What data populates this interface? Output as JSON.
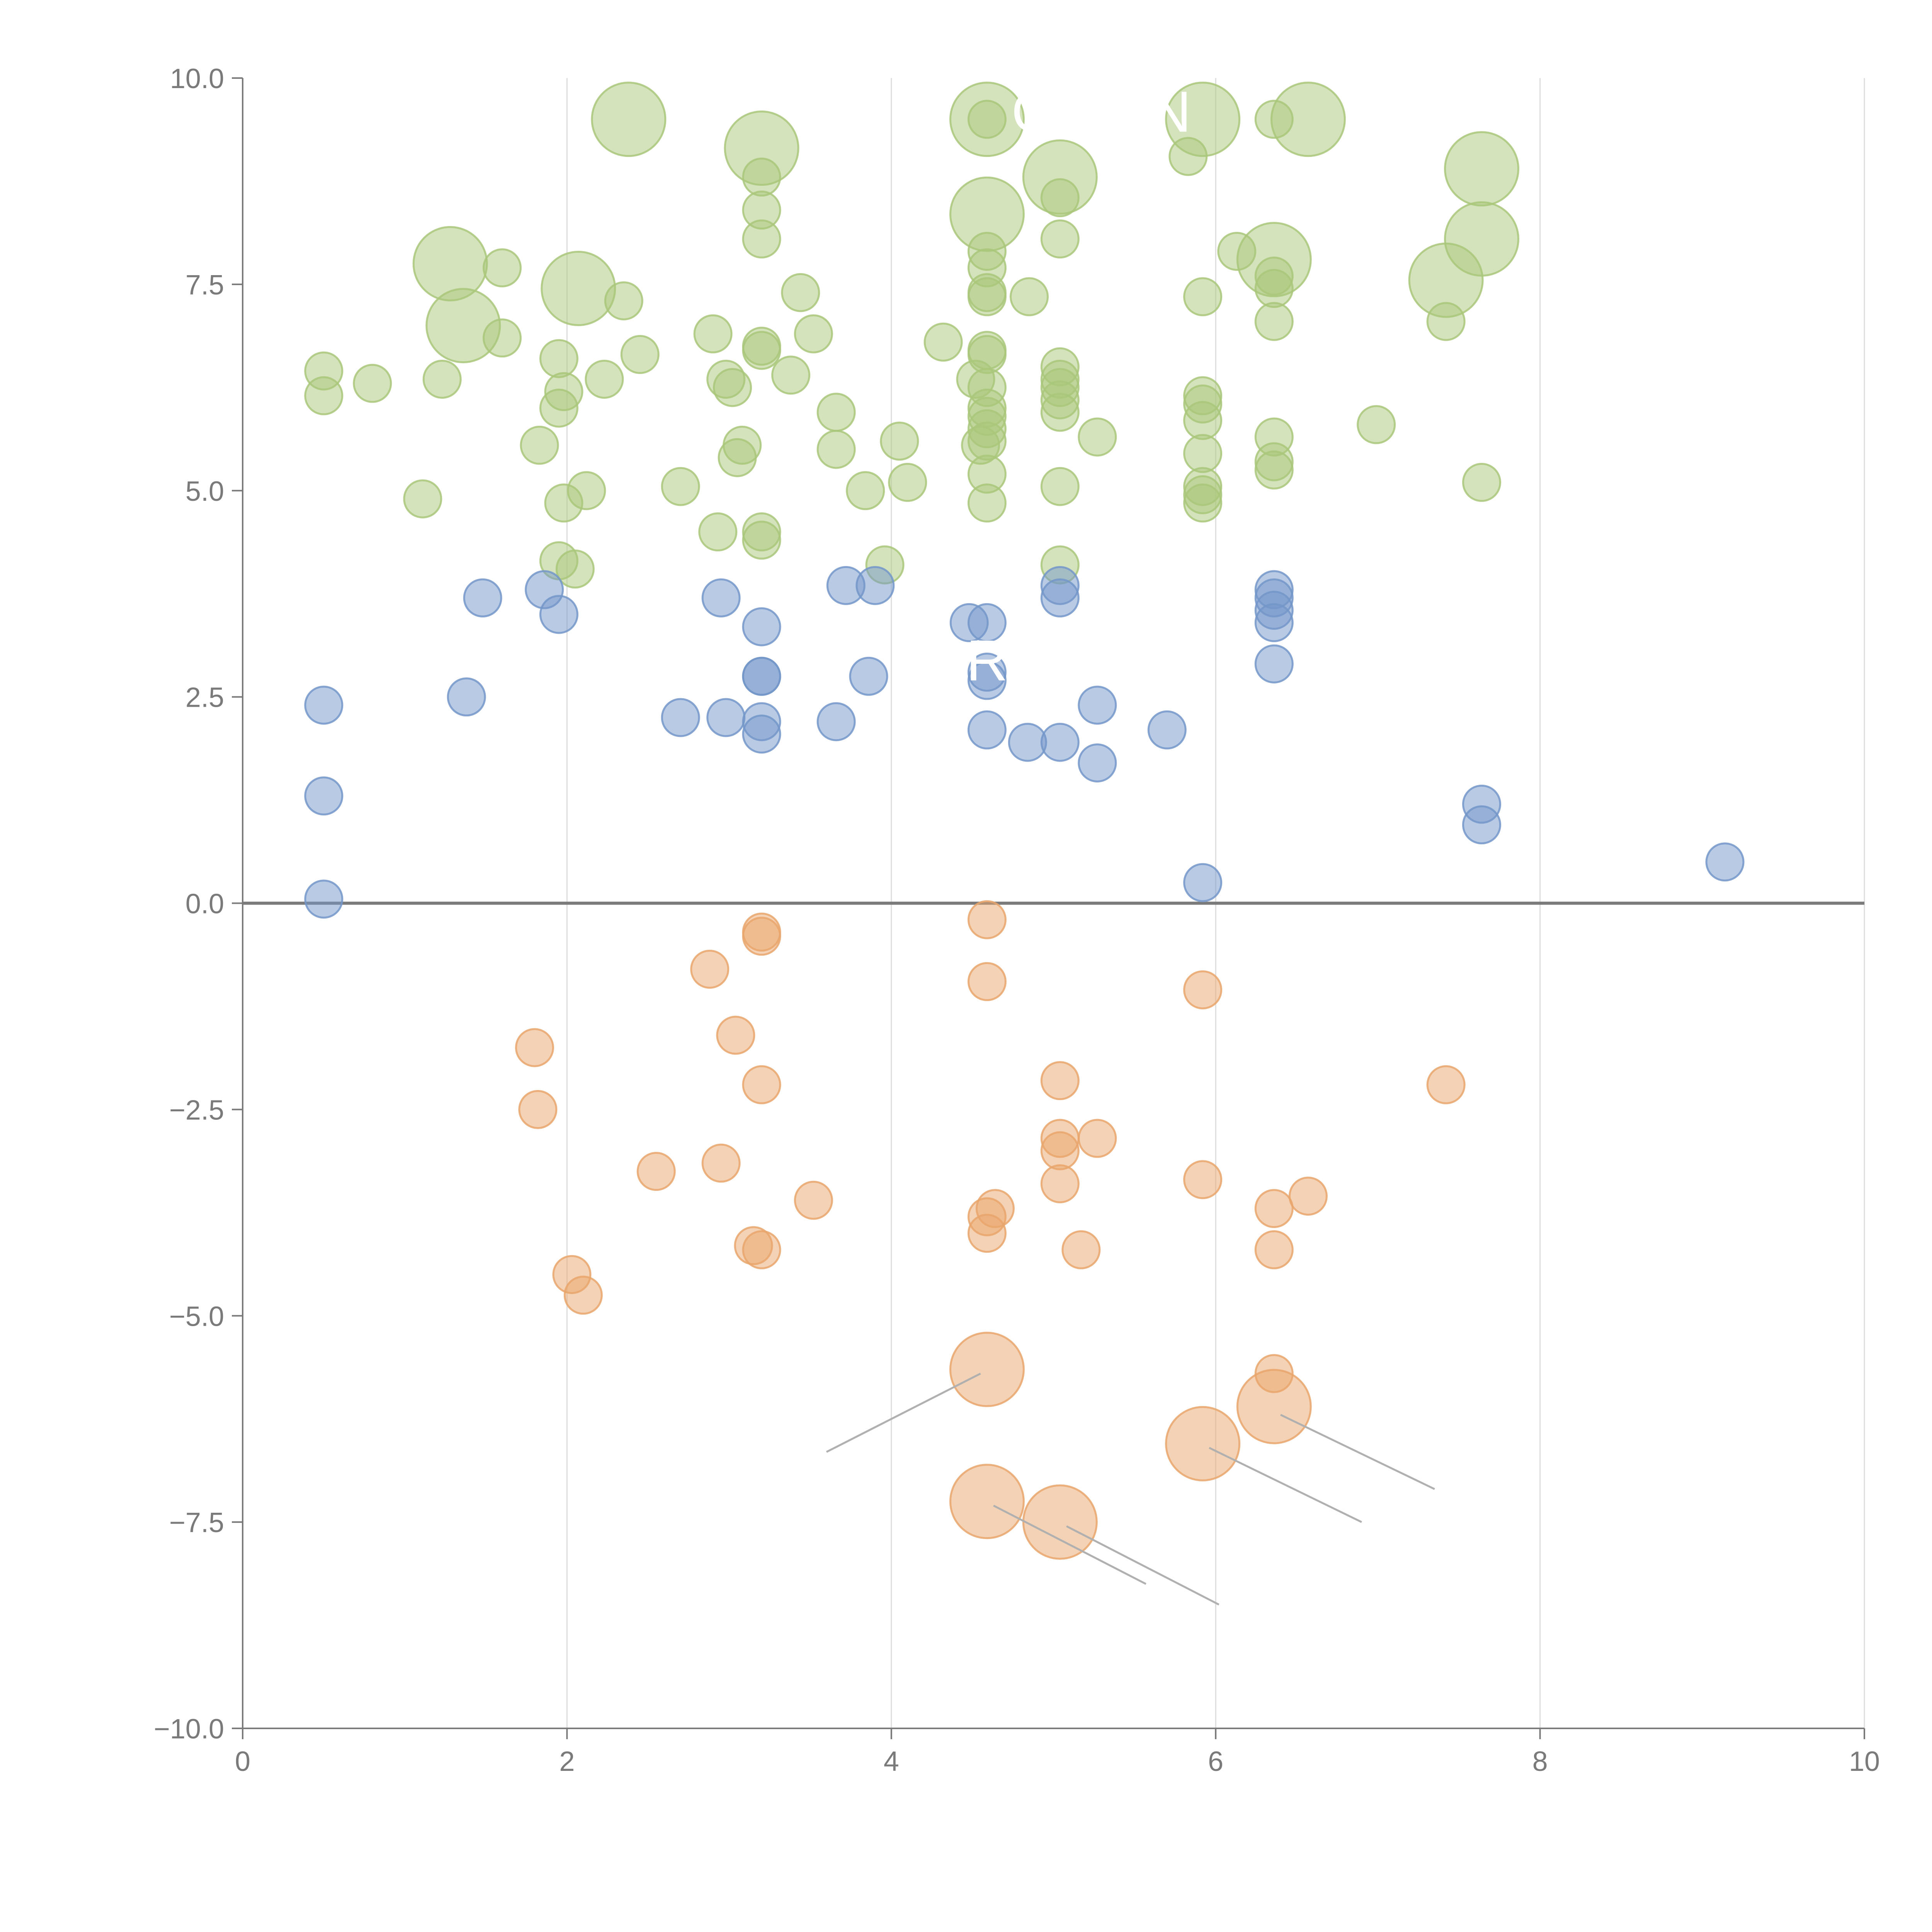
{
  "chart_data": {
    "type": "scatter",
    "title": "",
    "xlabel": "",
    "ylabel": "",
    "xlim": [
      0,
      10
    ],
    "ylim": [
      -10,
      10
    ],
    "grid": "vertical",
    "baseline_y": 0,
    "xticks": [
      0,
      2,
      4,
      6,
      8,
      10
    ],
    "xtick_labels": [
      "0",
      "2",
      "4",
      "6",
      "8",
      "10"
    ],
    "yticks": [
      -10,
      -7.5,
      -5,
      -2.5,
      0,
      2.5,
      5,
      7.5,
      10
    ],
    "ytick_labels": [
      "−10.0",
      "−7.5",
      "−5.0",
      "−2.5",
      "0.0",
      "2.5",
      "5.0",
      "7.5",
      "10.0"
    ],
    "colors": {
      "green": "#a9c77a",
      "blue": "#7396c9",
      "orange": "#e9a66c",
      "axis": "#7a7a7a",
      "grid": "#dcdcdc",
      "leader": "#b0b0b0"
    },
    "series": [
      {
        "name": "green",
        "color": "#a9c77a",
        "points": [
          [
            2.38,
            9.5,
            2
          ],
          [
            3.2,
            9.15,
            2
          ],
          [
            4.59,
            9.5,
            2
          ],
          [
            5.92,
            9.5,
            2
          ],
          [
            6.57,
            9.5,
            2
          ],
          [
            5.04,
            8.8,
            2
          ],
          [
            7.64,
            8.9,
            2
          ],
          [
            4.59,
            8.35,
            2
          ],
          [
            1.28,
            7.75,
            2
          ],
          [
            2.07,
            7.45,
            2
          ],
          [
            1.36,
            7.0,
            2
          ],
          [
            6.36,
            7.8,
            2
          ],
          [
            7.42,
            7.55,
            2
          ],
          [
            7.64,
            8.05,
            2
          ],
          [
            4.59,
            9.5,
            1
          ],
          [
            6.36,
            9.5,
            1
          ],
          [
            5.83,
            9.05,
            1
          ],
          [
            3.2,
            8.8,
            1
          ],
          [
            3.2,
            8.4,
            1
          ],
          [
            3.2,
            8.05,
            1
          ],
          [
            5.04,
            8.55,
            1
          ],
          [
            5.04,
            8.05,
            1
          ],
          [
            1.6,
            7.7,
            1
          ],
          [
            2.35,
            7.3,
            1
          ],
          [
            3.44,
            7.4,
            1
          ],
          [
            4.59,
            7.9,
            1
          ],
          [
            4.59,
            7.7,
            1
          ],
          [
            4.59,
            7.4,
            1
          ],
          [
            4.59,
            7.35,
            1
          ],
          [
            4.85,
            7.35,
            1
          ],
          [
            5.92,
            7.35,
            1
          ],
          [
            6.13,
            7.9,
            1
          ],
          [
            6.36,
            7.6,
            1
          ],
          [
            6.36,
            7.45,
            1
          ],
          [
            6.36,
            7.05,
            1
          ],
          [
            7.42,
            7.05,
            1
          ],
          [
            0.5,
            6.45,
            1
          ],
          [
            0.5,
            6.15,
            1
          ],
          [
            0.8,
            6.3,
            1
          ],
          [
            1.23,
            6.35,
            1
          ],
          [
            1.6,
            6.85,
            1
          ],
          [
            1.95,
            6.6,
            1
          ],
          [
            1.98,
            6.2,
            1
          ],
          [
            1.95,
            6.0,
            1
          ],
          [
            2.23,
            6.35,
            1
          ],
          [
            2.45,
            6.65,
            1
          ],
          [
            1.83,
            5.55,
            1
          ],
          [
            2.9,
            6.9,
            1
          ],
          [
            2.98,
            6.35,
            1
          ],
          [
            3.02,
            6.25,
            1
          ],
          [
            3.2,
            6.7,
            1
          ],
          [
            3.2,
            6.75,
            1
          ],
          [
            3.38,
            6.4,
            1
          ],
          [
            3.52,
            6.9,
            1
          ],
          [
            3.66,
            5.95,
            1
          ],
          [
            3.66,
            5.5,
            1
          ],
          [
            3.08,
            5.55,
            1
          ],
          [
            3.05,
            5.4,
            1
          ],
          [
            4.05,
            5.6,
            1
          ],
          [
            4.32,
            6.8,
            1
          ],
          [
            4.52,
            6.35,
            1
          ],
          [
            4.59,
            6.7,
            1
          ],
          [
            4.59,
            6.65,
            1
          ],
          [
            4.59,
            6.25,
            1
          ],
          [
            4.59,
            6.0,
            1
          ],
          [
            4.59,
            5.9,
            1
          ],
          [
            4.59,
            5.75,
            1
          ],
          [
            4.59,
            5.6,
            1
          ],
          [
            4.55,
            5.55,
            1
          ],
          [
            5.04,
            6.5,
            1
          ],
          [
            5.04,
            6.35,
            1
          ],
          [
            5.04,
            6.25,
            1
          ],
          [
            5.04,
            6.1,
            1
          ],
          [
            5.04,
            5.95,
            1
          ],
          [
            5.27,
            5.65,
            1
          ],
          [
            5.92,
            6.15,
            1
          ],
          [
            5.92,
            6.05,
            1
          ],
          [
            5.92,
            5.85,
            1
          ],
          [
            5.92,
            5.45,
            1
          ],
          [
            6.36,
            5.65,
            1
          ],
          [
            6.36,
            5.35,
            1
          ],
          [
            6.36,
            5.25,
            1
          ],
          [
            6.99,
            5.8,
            1
          ],
          [
            7.64,
            5.1,
            1
          ],
          [
            1.11,
            4.9,
            1
          ],
          [
            1.98,
            4.85,
            1
          ],
          [
            2.12,
            5.0,
            1
          ],
          [
            2.7,
            5.05,
            1
          ],
          [
            3.84,
            5.0,
            1
          ],
          [
            4.1,
            5.1,
            1
          ],
          [
            4.59,
            5.2,
            1
          ],
          [
            4.59,
            4.85,
            1
          ],
          [
            5.04,
            5.05,
            1
          ],
          [
            5.92,
            5.05,
            1
          ],
          [
            5.92,
            4.95,
            1
          ],
          [
            5.92,
            4.85,
            1
          ],
          [
            2.93,
            4.5,
            1
          ],
          [
            3.2,
            4.5,
            1
          ],
          [
            3.2,
            4.4,
            1
          ],
          [
            1.95,
            4.15,
            1
          ],
          [
            2.05,
            4.05,
            1
          ],
          [
            3.96,
            4.1,
            1
          ],
          [
            5.04,
            4.1,
            1
          ]
        ]
      },
      {
        "name": "blue",
        "color": "#7396c9",
        "points": [
          [
            1.48,
            3.7,
            1
          ],
          [
            1.86,
            3.8,
            1
          ],
          [
            1.95,
            3.5,
            1
          ],
          [
            2.95,
            3.7,
            1
          ],
          [
            3.2,
            3.35,
            1
          ],
          [
            3.72,
            3.85,
            1
          ],
          [
            3.9,
            3.85,
            1
          ],
          [
            4.48,
            3.4,
            1
          ],
          [
            4.59,
            3.4,
            1
          ],
          [
            5.04,
            3.85,
            1
          ],
          [
            5.04,
            3.7,
            1
          ],
          [
            6.36,
            3.8,
            1
          ],
          [
            6.36,
            3.7,
            1
          ],
          [
            6.36,
            3.55,
            1
          ],
          [
            6.36,
            3.4,
            1
          ],
          [
            6.36,
            2.9,
            1
          ],
          [
            0.5,
            2.4,
            1
          ],
          [
            1.38,
            2.5,
            1
          ],
          [
            2.7,
            2.25,
            1
          ],
          [
            2.98,
            2.25,
            1
          ],
          [
            3.2,
            2.75,
            1
          ],
          [
            3.2,
            2.75,
            1
          ],
          [
            3.2,
            2.2,
            1
          ],
          [
            3.2,
            2.05,
            1
          ],
          [
            3.66,
            2.2,
            1
          ],
          [
            3.86,
            2.75,
            1
          ],
          [
            4.59,
            2.8,
            1
          ],
          [
            4.59,
            2.7,
            1
          ],
          [
            4.59,
            2.1,
            1
          ],
          [
            4.84,
            1.95,
            1
          ],
          [
            5.04,
            1.95,
            1
          ],
          [
            5.27,
            2.4,
            1
          ],
          [
            5.27,
            1.7,
            1
          ],
          [
            5.7,
            2.1,
            1
          ],
          [
            0.5,
            1.3,
            1
          ],
          [
            0.5,
            0.05,
            1
          ],
          [
            5.92,
            0.25,
            1
          ],
          [
            7.64,
            1.2,
            1
          ],
          [
            7.64,
            0.95,
            1
          ],
          [
            9.14,
            0.5,
            1
          ]
        ]
      },
      {
        "name": "orange",
        "color": "#e9a66c",
        "points": [
          [
            3.2,
            -0.35,
            1
          ],
          [
            3.2,
            -0.4,
            1
          ],
          [
            4.59,
            -0.2,
            1
          ],
          [
            2.88,
            -0.8,
            1
          ],
          [
            4.59,
            -0.95,
            1
          ],
          [
            5.92,
            -1.05,
            1
          ],
          [
            1.8,
            -1.75,
            1
          ],
          [
            3.04,
            -1.6,
            1
          ],
          [
            3.2,
            -2.2,
            1
          ],
          [
            1.82,
            -2.5,
            1
          ],
          [
            5.04,
            -2.15,
            1
          ],
          [
            7.42,
            -2.2,
            1
          ],
          [
            2.55,
            -3.25,
            1
          ],
          [
            2.95,
            -3.15,
            1
          ],
          [
            5.04,
            -2.85,
            1
          ],
          [
            5.04,
            -3.0,
            1
          ],
          [
            5.27,
            -2.85,
            1
          ],
          [
            5.04,
            -3.4,
            1
          ],
          [
            5.92,
            -3.35,
            1
          ],
          [
            3.52,
            -3.6,
            1
          ],
          [
            4.59,
            -3.8,
            1
          ],
          [
            4.64,
            -3.7,
            1
          ],
          [
            4.59,
            -4.0,
            1
          ],
          [
            6.36,
            -3.7,
            1
          ],
          [
            6.57,
            -3.55,
            1
          ],
          [
            3.15,
            -4.15,
            1
          ],
          [
            3.2,
            -4.2,
            1
          ],
          [
            5.17,
            -4.2,
            1
          ],
          [
            6.36,
            -4.2,
            1
          ],
          [
            2.03,
            -4.5,
            1
          ],
          [
            2.1,
            -4.75,
            1
          ],
          [
            6.36,
            -5.7,
            1
          ],
          [
            4.59,
            -5.65,
            2
          ],
          [
            6.36,
            -6.1,
            2
          ],
          [
            5.92,
            -6.55,
            2
          ],
          [
            4.59,
            -7.25,
            2
          ],
          [
            5.04,
            -7.5,
            2
          ]
        ]
      }
    ],
    "point_labels": [
      {
        "text": "O",
        "x": 4.88,
        "y": 9.35,
        "color": "#ffffff"
      },
      {
        "text": "N",
        "x": 5.72,
        "y": 9.35,
        "color": "#ffffff"
      },
      {
        "text": "R",
        "x": 4.59,
        "y": 2.7,
        "color": "#ffffff"
      }
    ],
    "leader_lines": [
      [
        [
          4.55,
          -5.7
        ],
        [
          3.6,
          -6.65
        ]
      ],
      [
        [
          6.4,
          -6.2
        ],
        [
          7.35,
          -7.1
        ]
      ],
      [
        [
          5.96,
          -6.6
        ],
        [
          6.9,
          -7.5
        ]
      ],
      [
        [
          4.63,
          -7.3
        ],
        [
          5.57,
          -8.25
        ]
      ],
      [
        [
          5.08,
          -7.55
        ],
        [
          6.02,
          -8.5
        ]
      ]
    ]
  }
}
